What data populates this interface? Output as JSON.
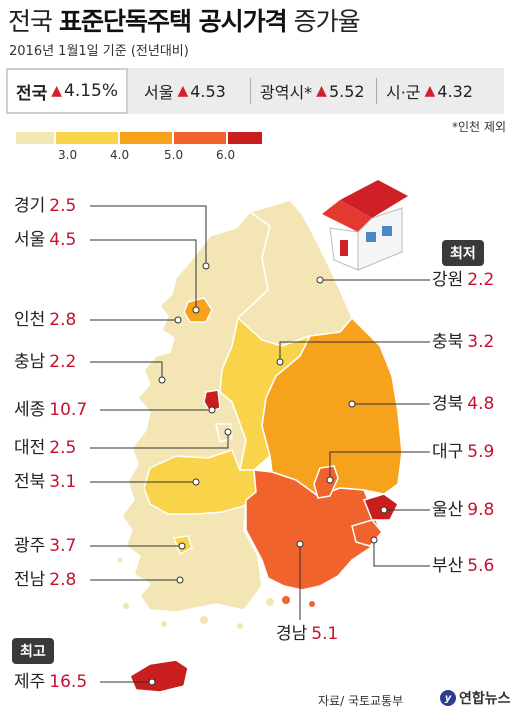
{
  "title": {
    "part1": "전국",
    "part2": "표준단독주택 공시가격",
    "part3": "증가율"
  },
  "subtitle": "2016년 1월1일 기준 (전년대비)",
  "summary": {
    "national": {
      "label": "전국",
      "value": "4.15%"
    },
    "seoul": {
      "label": "서울",
      "value": "4.53"
    },
    "metro": {
      "label": "광역시*",
      "value": "5.52"
    },
    "sigun": {
      "label": "시·군",
      "value": "4.32"
    },
    "up_symbol": "▲"
  },
  "note": "*인천 제외",
  "legend": {
    "ticks": [
      "3.0",
      "4.0",
      "5.0",
      "6.0"
    ],
    "colors": [
      "#f3e6b4",
      "#f9d34a",
      "#f7a21c",
      "#f0632d",
      "#c81e1e"
    ]
  },
  "tags": {
    "lowest": "최저",
    "highest": "최고"
  },
  "regions": [
    {
      "key": "gyeonggi",
      "name": "경기",
      "value": "2.5"
    },
    {
      "key": "seoul",
      "name": "서울",
      "value": "4.5"
    },
    {
      "key": "incheon",
      "name": "인천",
      "value": "2.8"
    },
    {
      "key": "chungnam",
      "name": "충남",
      "value": "2.2"
    },
    {
      "key": "sejong",
      "name": "세종",
      "value": "10.7"
    },
    {
      "key": "daejeon",
      "name": "대전",
      "value": "2.5"
    },
    {
      "key": "jeonbuk",
      "name": "전북",
      "value": "3.1"
    },
    {
      "key": "gwangju",
      "name": "광주",
      "value": "3.7"
    },
    {
      "key": "jeonnam",
      "name": "전남",
      "value": "2.8"
    },
    {
      "key": "jeju",
      "name": "제주",
      "value": "16.5"
    },
    {
      "key": "gangwon",
      "name": "강원",
      "value": "2.2"
    },
    {
      "key": "chungbuk",
      "name": "충북",
      "value": "3.2"
    },
    {
      "key": "gyeongbuk",
      "name": "경북",
      "value": "4.8"
    },
    {
      "key": "daegu",
      "name": "대구",
      "value": "5.9"
    },
    {
      "key": "ulsan",
      "name": "울산",
      "value": "9.8"
    },
    {
      "key": "busan",
      "name": "부산",
      "value": "5.6"
    },
    {
      "key": "gyeongnam",
      "name": "경남",
      "value": "5.1"
    }
  ],
  "source": "자료/ 국토교통부",
  "logo": "연합뉴스"
}
